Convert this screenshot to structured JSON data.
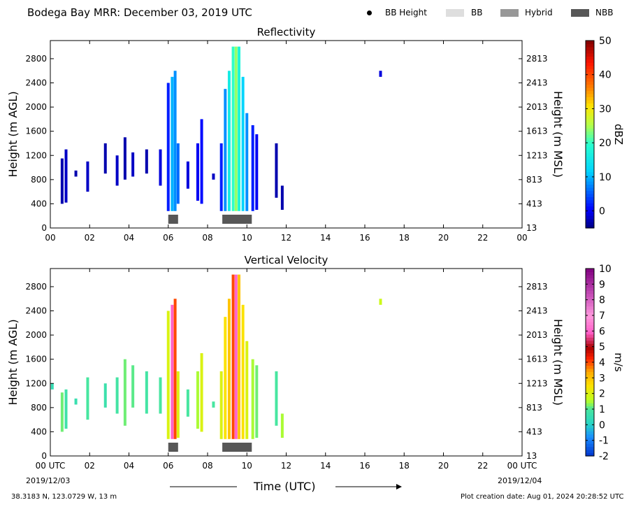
{
  "header": {
    "title": "Bodega Bay MRR:  December 03, 2019 UTC",
    "legend": [
      {
        "label": "BB Height",
        "kind": "dot",
        "color": "#000000"
      },
      {
        "label": "BB",
        "kind": "box",
        "color": "#dedede"
      },
      {
        "label": "Hybrid",
        "kind": "box",
        "color": "#989898"
      },
      {
        "label": "NBB",
        "kind": "box",
        "color": "#575757"
      }
    ]
  },
  "footer": {
    "location": "38.3183 N, 123.0729 W, 13 m",
    "creation": "Plot creation date: Aug 01, 2024 20:28:52 UTC",
    "time_label": "Time (UTC)",
    "start_date": "2019/12/03",
    "end_date": "2019/12/04"
  },
  "chart_data": [
    {
      "type": "heatmap",
      "title": "Reflectivity",
      "ylabel": "Height (m AGL)",
      "ylabel_right": "Height (m MSL)",
      "xlim": [
        0,
        24
      ],
      "ylim": [
        0,
        3100
      ],
      "x_ticks": [
        "00",
        "02",
        "04",
        "06",
        "08",
        "10",
        "12",
        "14",
        "16",
        "18",
        "20",
        "22",
        "00"
      ],
      "y_ticks": [
        0,
        400,
        800,
        1200,
        1600,
        2000,
        2400,
        2800
      ],
      "y_ticks_right": [
        "13",
        "413",
        "813",
        "1213",
        "1613",
        "2013",
        "2413",
        "2813"
      ],
      "colorbar": {
        "label": "dBZ",
        "min": -5,
        "max": 50,
        "ticks": [
          0,
          10,
          20,
          30,
          40,
          50
        ]
      },
      "bb_type_periods": [
        {
          "type": "NBB",
          "start": 6.0,
          "end": 6.5
        },
        {
          "type": "NBB",
          "start": 8.75,
          "end": 10.25
        }
      ],
      "columns": [
        {
          "t": 0.6,
          "top": 1150,
          "bottom": 400,
          "value": -3
        },
        {
          "t": 0.8,
          "top": 1300,
          "bottom": 420,
          "value": -2
        },
        {
          "t": 1.3,
          "top": 950,
          "bottom": 850,
          "value": -3
        },
        {
          "t": 1.9,
          "top": 1100,
          "bottom": 600,
          "value": -2
        },
        {
          "t": 2.8,
          "top": 1400,
          "bottom": 900,
          "value": -3
        },
        {
          "t": 3.4,
          "top": 1200,
          "bottom": 700,
          "value": -2
        },
        {
          "t": 3.8,
          "top": 1500,
          "bottom": 800,
          "value": -3
        },
        {
          "t": 4.2,
          "top": 1250,
          "bottom": 850,
          "value": -2
        },
        {
          "t": 4.9,
          "top": 1300,
          "bottom": 900,
          "value": -3
        },
        {
          "t": 5.6,
          "top": 1300,
          "bottom": 700,
          "value": -1
        },
        {
          "t": 6.0,
          "top": 2400,
          "bottom": 280,
          "value": 2
        },
        {
          "t": 6.2,
          "top": 2500,
          "bottom": 280,
          "value": 10
        },
        {
          "t": 6.35,
          "top": 2600,
          "bottom": 280,
          "value": 8
        },
        {
          "t": 6.5,
          "top": 1400,
          "bottom": 400,
          "value": 6
        },
        {
          "t": 7.0,
          "top": 1100,
          "bottom": 650,
          "value": -1
        },
        {
          "t": 7.5,
          "top": 1400,
          "bottom": 450,
          "value": 0
        },
        {
          "t": 7.7,
          "top": 1800,
          "bottom": 400,
          "value": 1
        },
        {
          "t": 8.3,
          "top": 900,
          "bottom": 800,
          "value": -2
        },
        {
          "t": 8.7,
          "top": 1400,
          "bottom": 280,
          "value": 2
        },
        {
          "t": 8.9,
          "top": 2300,
          "bottom": 280,
          "value": 8
        },
        {
          "t": 9.1,
          "top": 2600,
          "bottom": 280,
          "value": 16
        },
        {
          "t": 9.3,
          "top": 3000,
          "bottom": 280,
          "value": 20
        },
        {
          "t": 9.45,
          "top": 3000,
          "bottom": 280,
          "value": 24
        },
        {
          "t": 9.6,
          "top": 3000,
          "bottom": 280,
          "value": 18
        },
        {
          "t": 9.8,
          "top": 2500,
          "bottom": 280,
          "value": 12
        },
        {
          "t": 10.0,
          "top": 1900,
          "bottom": 280,
          "value": 8
        },
        {
          "t": 10.3,
          "top": 1700,
          "bottom": 280,
          "value": 2
        },
        {
          "t": 10.5,
          "top": 1550,
          "bottom": 300,
          "value": 0
        },
        {
          "t": 11.5,
          "top": 1400,
          "bottom": 500,
          "value": -3
        },
        {
          "t": 11.8,
          "top": 700,
          "bottom": 300,
          "value": -3
        },
        {
          "t": 16.8,
          "top": 2600,
          "bottom": 2500,
          "value": -1
        }
      ]
    },
    {
      "type": "heatmap",
      "title": "Vertical Velocity",
      "ylabel": "Height (m AGL)",
      "ylabel_right": "Height (m MSL)",
      "xlim": [
        0,
        24
      ],
      "ylim": [
        0,
        3100
      ],
      "x_ticks": [
        "00 UTC",
        "02",
        "04",
        "06",
        "08",
        "10",
        "12",
        "14",
        "16",
        "18",
        "20",
        "22",
        "00 UTC"
      ],
      "y_ticks": [
        0,
        400,
        800,
        1200,
        1600,
        2000,
        2400,
        2800
      ],
      "y_ticks_right": [
        "13",
        "413",
        "813",
        "1213",
        "1613",
        "2013",
        "2413",
        "2813"
      ],
      "colorbar": {
        "label": "m/s",
        "min": -2,
        "max": 10,
        "ticks": [
          -2,
          -1,
          0,
          1,
          2,
          3,
          4,
          5,
          6,
          7,
          8,
          9,
          10
        ]
      },
      "bb_type_periods": [
        {
          "type": "NBB",
          "start": 6.0,
          "end": 6.5
        },
        {
          "type": "NBB",
          "start": 8.75,
          "end": 10.25
        }
      ],
      "columns": [
        {
          "t": 0.1,
          "top": 1200,
          "bottom": 1100,
          "value": 0.5
        },
        {
          "t": 0.6,
          "top": 1050,
          "bottom": 400,
          "value": 1.2
        },
        {
          "t": 0.8,
          "top": 1100,
          "bottom": 450,
          "value": 0.8
        },
        {
          "t": 1.3,
          "top": 950,
          "bottom": 850,
          "value": 0.6
        },
        {
          "t": 1.9,
          "top": 1300,
          "bottom": 600,
          "value": 1.0
        },
        {
          "t": 2.8,
          "top": 1200,
          "bottom": 800,
          "value": 0.7
        },
        {
          "t": 3.4,
          "top": 1300,
          "bottom": 700,
          "value": 0.9
        },
        {
          "t": 3.8,
          "top": 1600,
          "bottom": 500,
          "value": 1.2
        },
        {
          "t": 4.2,
          "top": 1500,
          "bottom": 800,
          "value": 1.1
        },
        {
          "t": 4.9,
          "top": 1400,
          "bottom": 700,
          "value": 0.9
        },
        {
          "t": 5.6,
          "top": 1300,
          "bottom": 700,
          "value": 1.0
        },
        {
          "t": 6.0,
          "top": 2400,
          "bottom": 280,
          "value": 2.0
        },
        {
          "t": 6.2,
          "top": 2500,
          "bottom": 280,
          "value": 6.0
        },
        {
          "t": 6.35,
          "top": 2600,
          "bottom": 280,
          "value": 4.0
        },
        {
          "t": 6.5,
          "top": 1400,
          "bottom": 300,
          "value": 2.0
        },
        {
          "t": 7.0,
          "top": 1100,
          "bottom": 650,
          "value": 1.0
        },
        {
          "t": 7.5,
          "top": 1400,
          "bottom": 450,
          "value": 1.5
        },
        {
          "t": 7.7,
          "top": 1700,
          "bottom": 400,
          "value": 2.0
        },
        {
          "t": 8.3,
          "top": 900,
          "bottom": 800,
          "value": 1.0
        },
        {
          "t": 8.7,
          "top": 1400,
          "bottom": 280,
          "value": 2.0
        },
        {
          "t": 8.9,
          "top": 2300,
          "bottom": 280,
          "value": 2.5
        },
        {
          "t": 9.1,
          "top": 2600,
          "bottom": 280,
          "value": 3.0
        },
        {
          "t": 9.3,
          "top": 3000,
          "bottom": 280,
          "value": 4.0
        },
        {
          "t": 9.45,
          "top": 3000,
          "bottom": 280,
          "value": 6.0
        },
        {
          "t": 9.6,
          "top": 3000,
          "bottom": 280,
          "value": 3.0
        },
        {
          "t": 9.8,
          "top": 2500,
          "bottom": 280,
          "value": 2.5
        },
        {
          "t": 10.0,
          "top": 1900,
          "bottom": 280,
          "value": 2.0
        },
        {
          "t": 10.3,
          "top": 1600,
          "bottom": 280,
          "value": 1.5
        },
        {
          "t": 10.5,
          "top": 1500,
          "bottom": 300,
          "value": 1.2
        },
        {
          "t": 11.5,
          "top": 1400,
          "bottom": 500,
          "value": 1.0
        },
        {
          "t": 11.8,
          "top": 700,
          "bottom": 300,
          "value": 1.5
        },
        {
          "t": 16.8,
          "top": 2600,
          "bottom": 2500,
          "value": 1.8
        }
      ]
    }
  ]
}
